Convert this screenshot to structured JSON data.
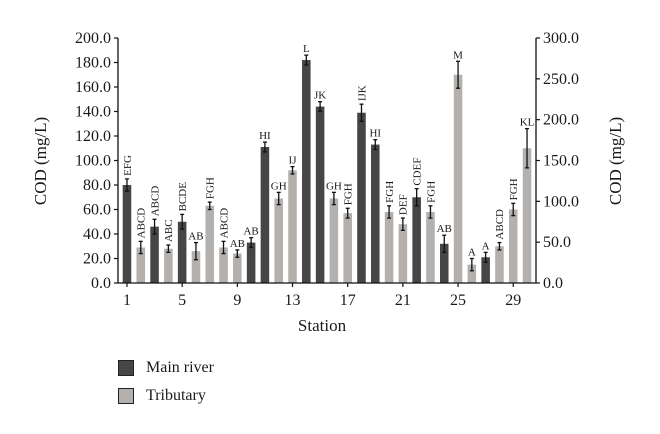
{
  "chart_data": {
    "type": "bar",
    "xlabel": "Station",
    "ylabel_left": "COD (mg/L)",
    "ylabel_right": "COD (mg/L)",
    "ylim_left": [
      0,
      200
    ],
    "ylim_right": [
      0,
      300
    ],
    "yticks_left": [
      "0.0",
      "20.0",
      "40.0",
      "60.0",
      "80.0",
      "100.0",
      "120.0",
      "140.0",
      "160.0",
      "180.0",
      "200.0"
    ],
    "yticks_right": [
      "0.0",
      "50.0",
      "100.0",
      "150.0",
      "200.0",
      "250.0",
      "300.0"
    ],
    "xticks": [
      {
        "station": 1,
        "label": "1"
      },
      {
        "station": 5,
        "label": "5"
      },
      {
        "station": 9,
        "label": "9"
      },
      {
        "station": 13,
        "label": "13"
      },
      {
        "station": 17,
        "label": "17"
      },
      {
        "station": 21,
        "label": "21"
      },
      {
        "station": 25,
        "label": "25"
      },
      {
        "station": 29,
        "label": "29"
      }
    ],
    "series": [
      {
        "name": "Main river",
        "color": "#464646",
        "axis": "left"
      },
      {
        "name": "Tributary",
        "color": "#b3b0ae",
        "axis": "left"
      }
    ],
    "bars": [
      {
        "station": 1,
        "series": "Main river",
        "value": 80,
        "error": 5,
        "label": "EFG"
      },
      {
        "station": 2,
        "series": "Tributary",
        "value": 29,
        "error": 5,
        "label": "ABCD"
      },
      {
        "station": 3,
        "series": "Main river",
        "value": 46,
        "error": 6,
        "label": "ABCD"
      },
      {
        "station": 4,
        "series": "Tributary",
        "value": 28,
        "error": 3,
        "label": "ABC"
      },
      {
        "station": 5,
        "series": "Main river",
        "value": 50,
        "error": 6,
        "label": "BCDE"
      },
      {
        "station": 6,
        "series": "Tributary",
        "value": 26,
        "error": 7,
        "label": "AB"
      },
      {
        "station": 7,
        "series": "Tributary",
        "value": 63,
        "error": 3,
        "label": "FGH"
      },
      {
        "station": 8,
        "series": "Tributary",
        "value": 29,
        "error": 5,
        "label": "ABCD"
      },
      {
        "station": 9,
        "series": "Tributary",
        "value": 24,
        "error": 3,
        "label": "AB"
      },
      {
        "station": 10,
        "series": "Main river",
        "value": 33,
        "error": 4,
        "label": "AB"
      },
      {
        "station": 11,
        "series": "Main river",
        "value": 111,
        "error": 4,
        "label": "HI"
      },
      {
        "station": 12,
        "series": "Tributary",
        "value": 69,
        "error": 5,
        "label": "GH"
      },
      {
        "station": 13,
        "series": "Tributary",
        "value": 92,
        "error": 3,
        "label": "IJ"
      },
      {
        "station": 14,
        "series": "Main river",
        "value": 182,
        "error": 4,
        "label": "L"
      },
      {
        "station": 15,
        "series": "Main river",
        "value": 144,
        "error": 4,
        "label": "JK"
      },
      {
        "station": 16,
        "series": "Tributary",
        "value": 69,
        "error": 5,
        "label": "GH"
      },
      {
        "station": 17,
        "series": "Tributary",
        "value": 57,
        "error": 4,
        "label": "FGH"
      },
      {
        "station": 18,
        "series": "Main river",
        "value": 139,
        "error": 7,
        "label": "IJK"
      },
      {
        "station": 19,
        "series": "Main river",
        "value": 113,
        "error": 4,
        "label": "HI"
      },
      {
        "station": 20,
        "series": "Tributary",
        "value": 58,
        "error": 5,
        "label": "FGH"
      },
      {
        "station": 21,
        "series": "Tributary",
        "value": 48,
        "error": 5,
        "label": "DEF"
      },
      {
        "station": 22,
        "series": "Main river",
        "value": 70,
        "error": 7,
        "label": "CDEF"
      },
      {
        "station": 23,
        "series": "Tributary",
        "value": 58,
        "error": 5,
        "label": "FGH"
      },
      {
        "station": 24,
        "series": "Main river",
        "value": 32,
        "error": 7,
        "label": "AB"
      },
      {
        "station": 25,
        "series": "Tributary",
        "value": 170,
        "error": 11,
        "label": "M"
      },
      {
        "station": 26,
        "series": "Tributary",
        "value": 15,
        "error": 5,
        "label": "A"
      },
      {
        "station": 27,
        "series": "Main river",
        "value": 21,
        "error": 4,
        "label": "A"
      },
      {
        "station": 28,
        "series": "Tributary",
        "value": 30,
        "error": 3,
        "label": "ABCD"
      },
      {
        "station": 29,
        "series": "Tributary",
        "value": 60,
        "error": 5,
        "label": "FGH"
      },
      {
        "station": 30,
        "series": "Tributary",
        "value": 110,
        "error": 16,
        "label": "KL"
      }
    ]
  },
  "legend": {
    "items": [
      {
        "label": "Main river",
        "color": "#464646"
      },
      {
        "label": "Tributary",
        "color": "#b3b0ae"
      }
    ]
  }
}
